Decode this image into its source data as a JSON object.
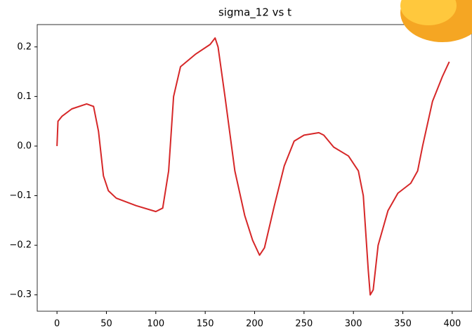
{
  "chart_data": {
    "type": "line",
    "title": "sigma_12 vs t",
    "x": [
      0,
      1,
      5,
      15,
      30,
      37,
      42,
      47,
      52,
      60,
      80,
      100,
      107,
      113,
      118,
      125,
      140,
      155,
      160,
      163,
      170,
      180,
      190,
      198,
      205,
      210,
      220,
      230,
      240,
      250,
      265,
      270,
      280,
      295,
      305,
      310,
      315,
      317,
      320,
      325,
      335,
      345,
      358,
      365,
      370,
      380,
      390,
      397
    ],
    "series": [
      {
        "color": "#d62728",
        "values": [
          0.0,
          0.05,
          0.06,
          0.075,
          0.085,
          0.08,
          0.03,
          -0.06,
          -0.09,
          -0.105,
          -0.12,
          -0.132,
          -0.125,
          -0.05,
          0.1,
          0.16,
          0.185,
          0.205,
          0.218,
          0.2,
          0.1,
          -0.05,
          -0.14,
          -0.19,
          -0.22,
          -0.205,
          -0.12,
          -0.04,
          0.01,
          0.022,
          0.027,
          0.022,
          -0.002,
          -0.02,
          -0.05,
          -0.1,
          -0.25,
          -0.3,
          -0.29,
          -0.2,
          -0.13,
          -0.095,
          -0.075,
          -0.05,
          0.0,
          0.09,
          0.14,
          0.17
        ]
      }
    ],
    "xlim": [
      -20,
      420
    ],
    "ylim": [
      -0.333,
      0.245
    ],
    "xticks": [
      0,
      50,
      100,
      150,
      200,
      250,
      300,
      350,
      400
    ],
    "yticks": [
      {
        "value": -0.3,
        "label": "−0.3"
      },
      {
        "value": -0.2,
        "label": "−0.2"
      },
      {
        "value": -0.1,
        "label": "−0.1"
      },
      {
        "value": 0,
        "label": "0.0"
      },
      0.1,
      0.2
    ]
  }
}
